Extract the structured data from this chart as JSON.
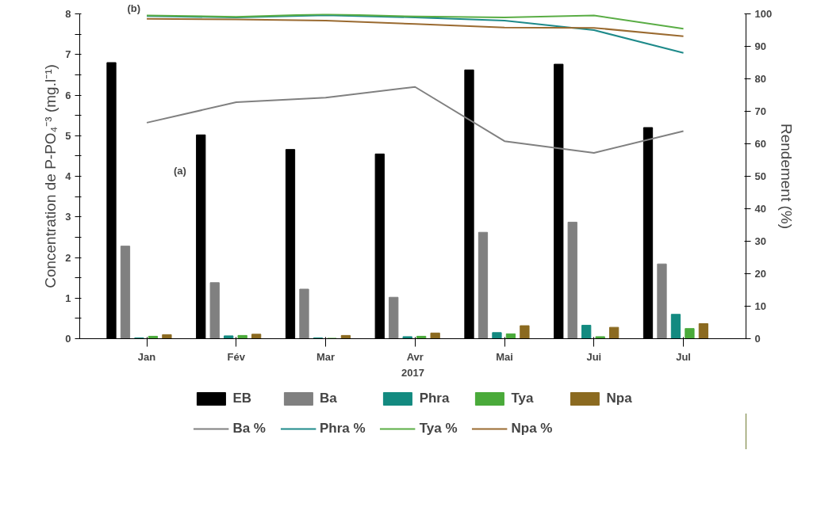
{
  "chart_data": {
    "type": "bar",
    "categories": [
      "Jan",
      "Fév",
      "Mar",
      "Avr",
      "Mai",
      "Jui",
      "Jul"
    ],
    "xlabel": "2017",
    "ylabel": "Concentration de P-PO₄⁻³ (mg.l⁻¹)",
    "y2label": "Rendement (%)",
    "ylim": [
      0,
      8
    ],
    "yticks": [
      0,
      {
        "value": 0.5,
        "label": null
      },
      1,
      {
        "value": 1.5,
        "label": null
      },
      2,
      {
        "value": 2.5,
        "label": null
      },
      3,
      {
        "value": 3.5,
        "label": null
      },
      4,
      {
        "value": 4.5,
        "label": null
      },
      5,
      {
        "value": 5.5,
        "label": null
      },
      6,
      {
        "value": 6.5,
        "label": null
      },
      7,
      {
        "value": 7.5,
        "label": null
      },
      8
    ],
    "y2lim": [
      0,
      100
    ],
    "y2ticks": [
      0,
      10,
      20,
      30,
      40,
      50,
      60,
      70,
      80,
      90,
      100
    ],
    "grid": false,
    "legend": "bottom",
    "annotations": [
      "(a)",
      "(b)"
    ],
    "series": [
      {
        "name": "EB",
        "color": "#000000",
        "values": [
          6.8,
          5.02,
          4.66,
          4.55,
          6.62,
          6.76,
          5.2
        ]
      },
      {
        "name": "Ba",
        "color": "#808080",
        "values": [
          2.28,
          1.38,
          1.22,
          1.02,
          2.62,
          2.87,
          1.84
        ]
      },
      {
        "name": "Phra",
        "color": "#138a80",
        "values": [
          0.02,
          0.07,
          0.02,
          0.05,
          0.15,
          0.33,
          0.6
        ]
      },
      {
        "name": "Tya",
        "color": "#4aaa3a",
        "values": [
          0.06,
          0.08,
          0.01,
          0.06,
          0.12,
          0.05,
          0.25
        ]
      },
      {
        "name": "Npa",
        "color": "#8b6a20",
        "values": [
          0.1,
          0.11,
          0.08,
          0.14,
          0.32,
          0.28,
          0.37
        ]
      },
      {
        "name": "Ba %",
        "type": "line",
        "axis": "y2",
        "color": "#808080",
        "values": [
          66.5,
          72.8,
          74.2,
          77.5,
          60.8,
          57.2,
          63.9
        ]
      },
      {
        "name": "Phra %",
        "type": "line",
        "axis": "y2",
        "color": "#1e8a8a",
        "values": [
          99.3,
          98.9,
          99.6,
          98.9,
          97.9,
          95.0,
          88.0
        ]
      },
      {
        "name": "Tya %",
        "type": "line",
        "axis": "y2",
        "color": "#5aad45",
        "values": [
          99.5,
          99.1,
          99.9,
          99.2,
          98.9,
          99.5,
          95.4
        ]
      },
      {
        "name": "Npa %",
        "type": "line",
        "axis": "y2",
        "color": "#9a6a30",
        "values": [
          98.5,
          98.3,
          97.9,
          96.9,
          95.8,
          95.7,
          93.1
        ]
      }
    ]
  }
}
